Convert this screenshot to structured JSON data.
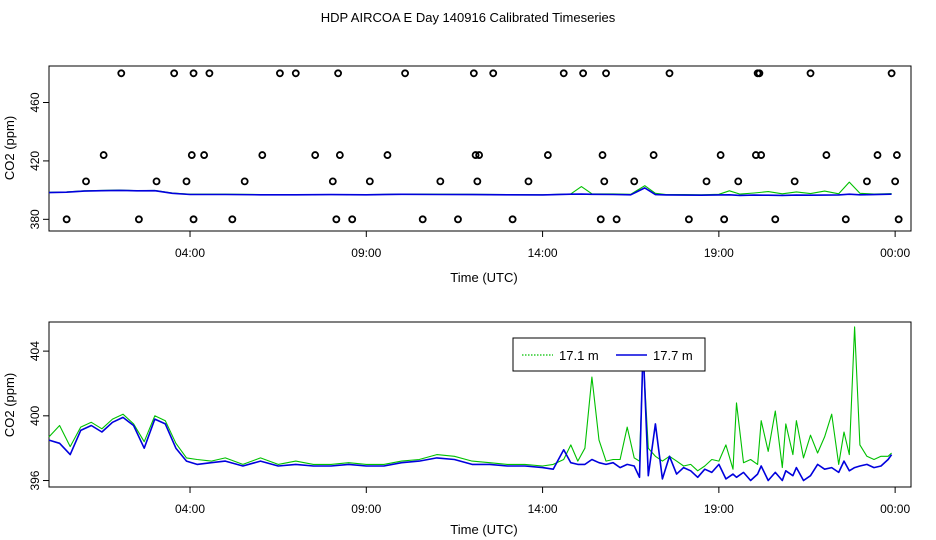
{
  "title": "HDP AIRCOA E  Day 140916  Calibrated Timeseries",
  "colors": {
    "series_a": "#00c000",
    "series_b": "#0000dd",
    "points": "#000000"
  },
  "chart_data": [
    {
      "type": "line",
      "panel": "top",
      "title": "HDP AIRCOA E  Day 140916  Calibrated Timeseries",
      "xlabel": "Time (UTC)",
      "ylabel": "CO2 (ppm)",
      "x_unit": "hours since 00:00 (day 140916)",
      "xlim": [
        0,
        24.45
      ],
      "ylim": [
        372,
        485
      ],
      "x_ticks": [
        {
          "x": 4,
          "label": "04:00"
        },
        {
          "x": 9,
          "label": "09:00"
        },
        {
          "x": 14,
          "label": "14:00"
        },
        {
          "x": 19,
          "label": "19:00"
        },
        {
          "x": 24,
          "label": "00:00"
        }
      ],
      "y_ticks": [
        {
          "y": 380,
          "label": "380"
        },
        {
          "y": 420,
          "label": "420"
        },
        {
          "y": 460,
          "label": "460"
        }
      ],
      "series": [
        {
          "name": "17.1 m",
          "color": "#00c000",
          "x": [
            0.0,
            0.5,
            1.0,
            1.5,
            2.0,
            2.5,
            3.0,
            3.5,
            4.0,
            5.0,
            6.0,
            7.0,
            8.0,
            9.0,
            10.0,
            11.0,
            12.0,
            13.0,
            14.0,
            14.8,
            15.1,
            15.4,
            16.0,
            16.5,
            16.9,
            17.2,
            17.5,
            18.0,
            18.5,
            19.0,
            19.3,
            19.6,
            20.0,
            20.4,
            20.8,
            21.2,
            21.6,
            22.0,
            22.4,
            22.7,
            23.0,
            23.4,
            23.9
          ],
          "y": [
            398.5,
            398.8,
            399.5,
            399.8,
            400.0,
            399.6,
            399.8,
            398.0,
            397.2,
            397.2,
            397.0,
            396.9,
            397.0,
            396.9,
            397.3,
            397.2,
            397.1,
            397.0,
            396.8,
            397.4,
            402.4,
            397.5,
            397.4,
            397.1,
            403.0,
            397.8,
            396.9,
            397.0,
            396.8,
            397.1,
            399.5,
            397.3,
            398.0,
            399.0,
            397.5,
            398.8,
            397.6,
            399.3,
            397.5,
            405.5,
            397.8,
            397.3,
            397.6
          ]
        },
        {
          "name": "17.7 m",
          "color": "#0000dd",
          "x": [
            0.0,
            0.5,
            1.0,
            1.5,
            2.0,
            2.5,
            3.0,
            3.5,
            4.0,
            5.0,
            6.0,
            7.0,
            8.0,
            9.0,
            10.0,
            11.0,
            12.0,
            13.0,
            14.0,
            14.8,
            15.1,
            15.4,
            16.0,
            16.5,
            16.9,
            17.2,
            17.5,
            18.0,
            18.5,
            19.0,
            19.3,
            19.6,
            20.0,
            20.4,
            20.8,
            21.2,
            21.6,
            22.0,
            22.4,
            22.7,
            23.0,
            23.4,
            23.9
          ],
          "y": [
            398.3,
            398.6,
            399.3,
            399.6,
            399.8,
            399.5,
            399.6,
            397.8,
            397.0,
            397.0,
            396.8,
            396.8,
            396.9,
            396.8,
            397.1,
            397.0,
            396.9,
            396.8,
            396.7,
            397.2,
            397.3,
            397.1,
            397.0,
            396.8,
            401.5,
            396.9,
            396.7,
            396.6,
            396.5,
            396.7,
            396.8,
            396.4,
            396.6,
            396.5,
            396.4,
            396.6,
            396.5,
            396.6,
            396.7,
            397.2,
            396.8,
            396.9,
            397.2
          ]
        },
        {
          "name": "calibration points",
          "type": "scatter",
          "color": "#000000",
          "x": [
            0.5,
            1.05,
            1.55,
            2.05,
            2.55,
            3.05,
            3.55,
            3.9,
            4.05,
            4.1,
            4.1,
            4.4,
            4.55,
            5.2,
            5.55,
            6.05,
            6.55,
            7.0,
            7.55,
            8.05,
            8.15,
            8.2,
            8.25,
            8.6,
            9.1,
            9.6,
            10.1,
            10.6,
            11.1,
            11.6,
            12.05,
            12.1,
            12.15,
            12.2,
            12.6,
            13.15,
            13.6,
            14.15,
            14.6,
            15.15,
            15.65,
            15.7,
            15.75,
            15.8,
            16.1,
            16.6,
            17.15,
            17.6,
            18.15,
            18.65,
            19.05,
            19.15,
            19.55,
            20.05,
            20.1,
            20.15,
            20.2,
            20.6,
            21.15,
            21.6,
            22.05,
            22.6,
            23.2,
            23.5,
            23.9,
            24.0,
            24.05,
            24.1
          ],
          "y": [
            380,
            406,
            424,
            480,
            380,
            406,
            480,
            406,
            424,
            480,
            380,
            424,
            480,
            380,
            406,
            424,
            480,
            480,
            424,
            406,
            380,
            480,
            424,
            380,
            406,
            424,
            480,
            380,
            406,
            380,
            480,
            424,
            406,
            424,
            480,
            380,
            406,
            424,
            480,
            480,
            380,
            424,
            406,
            480,
            380,
            406,
            424,
            480,
            380,
            406,
            424,
            380,
            406,
            424,
            480,
            480,
            424,
            380,
            406,
            480,
            424,
            380,
            406,
            424,
            480,
            406,
            424,
            380
          ]
        }
      ]
    },
    {
      "type": "line",
      "panel": "bottom",
      "xlabel": "Time (UTC)",
      "ylabel": "CO2 (ppm)",
      "x_unit": "hours since 00:00 (day 140916)",
      "xlim": [
        0,
        24.45
      ],
      "ylim": [
        395.6,
        405.8
      ],
      "legend": {
        "position": "top-center",
        "entries": [
          "17.1 m",
          "17.7 m"
        ]
      },
      "x_ticks": [
        {
          "x": 4,
          "label": "04:00"
        },
        {
          "x": 9,
          "label": "09:00"
        },
        {
          "x": 14,
          "label": "14:00"
        },
        {
          "x": 19,
          "label": "19:00"
        },
        {
          "x": 24,
          "label": "00:00"
        }
      ],
      "y_ticks": [
        {
          "y": 396,
          "label": "396"
        },
        {
          "y": 400,
          "label": "400"
        },
        {
          "y": 404,
          "label": "404"
        }
      ],
      "series": [
        {
          "name": "17.1 m",
          "color": "#00c000",
          "x": [
            0.0,
            0.3,
            0.6,
            0.9,
            1.2,
            1.5,
            1.8,
            2.1,
            2.4,
            2.7,
            3.0,
            3.3,
            3.6,
            3.9,
            4.2,
            4.6,
            5.0,
            5.5,
            6.0,
            6.5,
            7.0,
            7.5,
            8.0,
            8.5,
            9.0,
            9.5,
            10.0,
            10.5,
            11.0,
            11.5,
            12.0,
            12.5,
            13.0,
            13.5,
            14.0,
            14.3,
            14.6,
            14.8,
            15.0,
            15.2,
            15.4,
            15.6,
            15.8,
            16.0,
            16.2,
            16.4,
            16.6,
            16.75,
            16.85,
            17.0,
            17.2,
            17.4,
            17.6,
            17.8,
            18.0,
            18.2,
            18.4,
            18.6,
            18.8,
            19.0,
            19.2,
            19.4,
            19.5,
            19.7,
            19.9,
            20.1,
            20.2,
            20.4,
            20.6,
            20.8,
            20.9,
            21.1,
            21.2,
            21.4,
            21.6,
            21.8,
            22.0,
            22.2,
            22.4,
            22.55,
            22.7,
            22.85,
            23.0,
            23.2,
            23.4,
            23.6,
            23.8,
            23.9
          ],
          "y": [
            398.7,
            399.4,
            398.1,
            399.3,
            399.6,
            399.2,
            399.8,
            400.1,
            399.5,
            398.4,
            400.0,
            399.7,
            398.3,
            397.4,
            397.3,
            397.2,
            397.4,
            397.0,
            397.4,
            397.0,
            397.2,
            397.0,
            397.0,
            397.1,
            397.0,
            397.0,
            397.2,
            397.3,
            397.6,
            397.5,
            397.2,
            397.1,
            397.0,
            397.0,
            396.9,
            397.0,
            397.3,
            398.2,
            397.2,
            398.0,
            402.4,
            398.5,
            397.2,
            397.3,
            397.3,
            399.3,
            397.4,
            397.2,
            403.8,
            398.0,
            397.5,
            397.2,
            397.5,
            397.2,
            396.9,
            397.0,
            396.6,
            396.9,
            397.3,
            397.2,
            398.2,
            396.7,
            400.8,
            397.1,
            397.3,
            397.0,
            399.7,
            397.8,
            400.3,
            396.8,
            399.5,
            397.6,
            399.7,
            397.4,
            398.8,
            397.7,
            398.7,
            400.1,
            397.0,
            399.0,
            397.6,
            405.5,
            398.2,
            397.5,
            397.3,
            397.5,
            397.5,
            397.7
          ]
        },
        {
          "name": "17.7 m",
          "color": "#0000dd",
          "x": [
            0.0,
            0.3,
            0.6,
            0.9,
            1.2,
            1.5,
            1.8,
            2.1,
            2.4,
            2.7,
            3.0,
            3.3,
            3.6,
            3.9,
            4.2,
            4.6,
            5.0,
            5.5,
            6.0,
            6.5,
            7.0,
            7.5,
            8.0,
            8.5,
            9.0,
            9.5,
            10.0,
            10.5,
            11.0,
            11.5,
            12.0,
            12.5,
            13.0,
            13.5,
            14.0,
            14.3,
            14.6,
            14.8,
            15.0,
            15.2,
            15.4,
            15.6,
            15.8,
            16.0,
            16.2,
            16.4,
            16.6,
            16.75,
            16.85,
            17.0,
            17.2,
            17.4,
            17.6,
            17.8,
            18.0,
            18.2,
            18.4,
            18.6,
            18.8,
            19.0,
            19.2,
            19.4,
            19.5,
            19.7,
            19.9,
            20.1,
            20.2,
            20.4,
            20.6,
            20.8,
            20.9,
            21.1,
            21.2,
            21.4,
            21.6,
            21.8,
            22.0,
            22.2,
            22.4,
            22.55,
            22.7,
            22.85,
            23.0,
            23.2,
            23.4,
            23.6,
            23.8,
            23.9
          ],
          "y": [
            398.5,
            398.3,
            397.6,
            399.1,
            399.4,
            399.0,
            399.6,
            399.9,
            399.4,
            398.0,
            399.8,
            399.5,
            398.0,
            397.2,
            397.0,
            397.1,
            397.2,
            396.9,
            397.2,
            396.9,
            397.0,
            396.9,
            396.9,
            397.0,
            396.9,
            396.9,
            397.1,
            397.2,
            397.4,
            397.3,
            397.0,
            397.0,
            396.9,
            396.9,
            396.8,
            396.7,
            397.9,
            397.1,
            397.0,
            397.0,
            397.3,
            397.1,
            397.0,
            397.1,
            396.8,
            397.0,
            396.9,
            396.2,
            404.3,
            396.3,
            399.5,
            396.1,
            397.5,
            396.4,
            396.8,
            396.6,
            396.2,
            396.7,
            396.5,
            397.0,
            396.1,
            396.4,
            396.2,
            396.5,
            396.0,
            396.4,
            396.9,
            396.0,
            396.5,
            396.0,
            396.6,
            396.3,
            396.8,
            396.0,
            396.3,
            397.0,
            396.7,
            396.8,
            396.5,
            397.2,
            396.6,
            396.8,
            396.9,
            397.0,
            396.8,
            396.9,
            397.3,
            397.6
          ]
        }
      ]
    }
  ]
}
